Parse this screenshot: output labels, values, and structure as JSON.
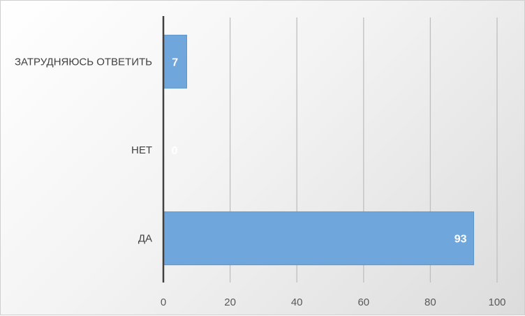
{
  "chart_data": {
    "type": "bar",
    "orientation": "horizontal",
    "categories": [
      "ЗАТРУДНЯЮСЬ ОТВЕТИТЬ",
      "НЕТ",
      "ДА"
    ],
    "values": [
      7,
      0,
      93
    ],
    "data_labels": [
      "7",
      "0",
      "93"
    ],
    "xlim": [
      0,
      100
    ],
    "x_ticks": [
      0,
      20,
      40,
      60,
      80,
      100
    ],
    "x_tick_labels": [
      "0",
      "20",
      "40",
      "60",
      "80",
      "100"
    ],
    "grid": true,
    "legend": "none",
    "title": "",
    "xlabel": "",
    "ylabel": "",
    "colors": {
      "bar": "#6fa6dc",
      "bar_border": "#5b93cb",
      "gridline": "#bfbfbf",
      "axis": "#404040",
      "data_label": "#ffffff"
    }
  }
}
